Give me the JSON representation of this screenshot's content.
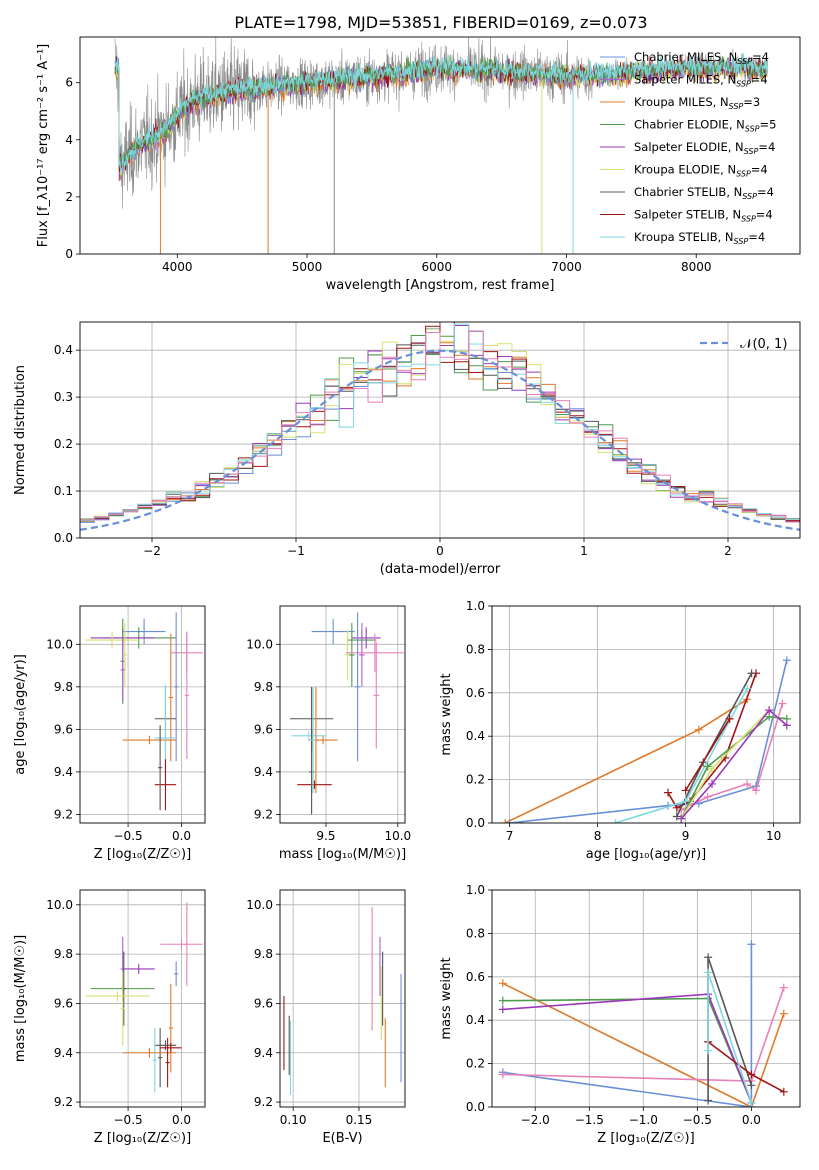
{
  "figure_title": "PLATE=1798, MJD=53851, FIBERID=0169, z=0.073",
  "colors": {
    "chabrier_miles": "#6a8fd8",
    "salpeter_miles": "#b05fd0",
    "kroupa_miles": "#e07a28",
    "chabrier_elodie": "#4f9a4f",
    "salpeter_elodie": "#9b39b8",
    "kroupa_elodie": "#d6e070",
    "chabrier_stelib": "#555555",
    "salpeter_stelib": "#a01515",
    "kroupa_stelib": "#7fd8e0",
    "pink": "#e880b8",
    "data_grey": "#8a8a8a"
  },
  "chart_data": [
    {
      "id": "spectrum",
      "type": "line",
      "xlabel": "wavelength [Angstrom, rest frame]",
      "ylabel": "Flux [f_λ10⁻¹⁷ erg cm⁻² s⁻¹ A⁻¹]",
      "xlim": [
        3250,
        8800
      ],
      "ylim": [
        0,
        7.6
      ],
      "xticks": [
        4000,
        5000,
        6000,
        7000,
        8000
      ],
      "yticks": [
        0,
        2,
        4,
        6
      ],
      "legend_position": "right",
      "legend": [
        {
          "text": "Chabrier MILES, N",
          "sub": "SSP",
          "val": "=4",
          "color": "chabrier_miles"
        },
        {
          "text": "Salpeter MILES, N",
          "sub": "SSP",
          "val": "=4",
          "color": "salpeter_miles"
        },
        {
          "text": "Kroupa MILES, N",
          "sub": "SSP",
          "val": "=3",
          "color": "kroupa_miles"
        },
        {
          "text": "Chabrier ELODIE, N",
          "sub": "SSP",
          "val": "=5",
          "color": "chabrier_elodie"
        },
        {
          "text": "Salpeter ELODIE, N",
          "sub": "SSP",
          "val": "=4",
          "color": "salpeter_elodie"
        },
        {
          "text": "Kroupa ELODIE, N",
          "sub": "SSP",
          "val": "=4",
          "color": "kroupa_elodie"
        },
        {
          "text": "Chabrier STELIB, N",
          "sub": "SSP",
          "val": "=4",
          "color": "chabrier_stelib"
        },
        {
          "text": "Salpeter STELIB, N",
          "sub": "SSP",
          "val": "=4",
          "color": "salpeter_stelib"
        },
        {
          "text": "Kroupa STELIB, N",
          "sub": "SSP",
          "val": "=4",
          "color": "kroupa_stelib"
        }
      ],
      "continuum": [
        [
          3550,
          3.0
        ],
        [
          3700,
          3.8
        ],
        [
          3900,
          4.3
        ],
        [
          4100,
          5.3
        ],
        [
          4300,
          5.6
        ],
        [
          4600,
          5.8
        ],
        [
          5000,
          6.0
        ],
        [
          5500,
          6.2
        ],
        [
          6000,
          6.5
        ],
        [
          6500,
          6.4
        ],
        [
          7000,
          6.2
        ],
        [
          7400,
          6.3
        ],
        [
          7800,
          6.5
        ],
        [
          8200,
          6.5
        ],
        [
          8500,
          6.5
        ]
      ]
    },
    {
      "id": "residuals",
      "type": "histogram",
      "xlabel": "(data-model)/error",
      "ylabel": "Normed distribution",
      "xlim": [
        -2.5,
        2.5
      ],
      "ylim": [
        0,
        0.46
      ],
      "xticks": [
        -2,
        -1,
        0,
        1,
        2
      ],
      "yticks": [
        0.0,
        0.1,
        0.2,
        0.3,
        0.4
      ],
      "grid": true,
      "legend_position": "top-right",
      "legend": "𝒩(0, 1)"
    },
    {
      "id": "age_vs_Z",
      "type": "scatter",
      "xlabel": "Z [log₁₀(Z/Z☉)]",
      "ylabel": "age  [log₁₀(age/yr)]",
      "xlim": [
        -0.95,
        0.22
      ],
      "ylim": [
        9.16,
        10.18
      ],
      "xticks": [
        -0.5,
        0.0
      ],
      "yticks": [
        9.2,
        9.4,
        9.6,
        9.8,
        10.0
      ],
      "grid": true,
      "points": [
        {
          "x": -0.35,
          "xerr": 0.2,
          "y": 10.06,
          "yerr": 0.06,
          "c": "chabrier_miles"
        },
        {
          "x": -0.4,
          "xerr": 0.35,
          "y": 10.03,
          "yerr": 0.05,
          "c": "chabrier_elodie"
        },
        {
          "x": -0.55,
          "xerr": 0.3,
          "y": 10.03,
          "yerr": 0.05,
          "c": "salpeter_elodie"
        },
        {
          "x": -0.65,
          "xerr": 0.25,
          "y": 10.02,
          "yerr": 0.04,
          "c": "kroupa_elodie"
        },
        {
          "x": -0.55,
          "xerr": 0.02,
          "y": 9.92,
          "yerr": 0.2,
          "c": "chabrier_elodie"
        },
        {
          "x": -0.53,
          "xerr": 0.02,
          "y": 9.95,
          "yerr": 0.15,
          "c": "kroupa_elodie"
        },
        {
          "x": -0.55,
          "xerr": 0.02,
          "y": 9.88,
          "yerr": 0.15,
          "c": "salpeter_miles"
        },
        {
          "x": 0.05,
          "xerr": 0.15,
          "y": 9.96,
          "yerr": 0.09,
          "c": "pink"
        },
        {
          "x": 0.05,
          "xerr": 0.02,
          "y": 9.76,
          "yerr": 0.3,
          "c": "pink"
        },
        {
          "x": -0.05,
          "xerr": 0.02,
          "y": 9.8,
          "yerr": 0.35,
          "c": "chabrier_miles"
        },
        {
          "x": -0.15,
          "xerr": 0.1,
          "y": 9.65,
          "yerr": 0.15,
          "c": "chabrier_stelib"
        },
        {
          "x": -0.3,
          "xerr": 0.25,
          "y": 9.55,
          "yerr": 0.02,
          "c": "kroupa_miles"
        },
        {
          "x": -0.1,
          "xerr": 0.02,
          "y": 9.75,
          "yerr": 0.3,
          "c": "kroupa_miles"
        },
        {
          "x": -0.15,
          "xerr": 0.1,
          "y": 9.56,
          "yerr": 0.25,
          "c": "kroupa_stelib"
        },
        {
          "x": -0.15,
          "xerr": 0.1,
          "y": 9.34,
          "yerr": 0.12,
          "c": "salpeter_stelib"
        },
        {
          "x": -0.2,
          "xerr": 0.02,
          "y": 9.42,
          "yerr": 0.2,
          "c": "chabrier_stelib"
        }
      ]
    },
    {
      "id": "age_vs_mass",
      "type": "scatter",
      "xlabel": "mass [log₁₀(M/M☉)]",
      "ylabel": "",
      "xlim": [
        9.18,
        10.05
      ],
      "ylim": [
        9.16,
        10.18
      ],
      "xticks": [
        9.5,
        10.0
      ],
      "yticks": [
        9.2,
        9.4,
        9.6,
        9.8,
        10.0
      ],
      "grid": true,
      "points": [
        {
          "x": 9.55,
          "xerr": 0.15,
          "y": 10.06,
          "yerr": 0.06,
          "c": "chabrier_miles"
        },
        {
          "x": 9.78,
          "xerr": 0.1,
          "y": 10.03,
          "yerr": 0.05,
          "c": "salpeter_elodie"
        },
        {
          "x": 9.75,
          "xerr": 0.1,
          "y": 10.02,
          "yerr": 0.05,
          "c": "chabrier_elodie"
        },
        {
          "x": 9.65,
          "xerr": 0.02,
          "y": 9.95,
          "yerr": 0.12,
          "c": "kroupa_elodie"
        },
        {
          "x": 9.68,
          "xerr": 0.02,
          "y": 9.95,
          "yerr": 0.15,
          "c": "chabrier_elodie"
        },
        {
          "x": 9.75,
          "xerr": 0.02,
          "y": 9.95,
          "yerr": 0.15,
          "c": "salpeter_miles"
        },
        {
          "x": 9.84,
          "xerr": 0.2,
          "y": 9.96,
          "yerr": 0.09,
          "c": "pink"
        },
        {
          "x": 9.85,
          "xerr": 0.02,
          "y": 9.76,
          "yerr": 0.25,
          "c": "pink"
        },
        {
          "x": 9.72,
          "xerr": 0.02,
          "y": 9.8,
          "yerr": 0.35,
          "c": "chabrier_miles"
        },
        {
          "x": 9.4,
          "xerr": 0.15,
          "y": 9.65,
          "yerr": 0.15,
          "c": "chabrier_stelib"
        },
        {
          "x": 9.48,
          "xerr": 0.1,
          "y": 9.55,
          "yerr": 0.02,
          "c": "kroupa_miles"
        },
        {
          "x": 9.38,
          "xerr": 0.12,
          "y": 9.57,
          "yerr": 0.02,
          "c": "kroupa_stelib"
        },
        {
          "x": 9.43,
          "xerr": 0.02,
          "y": 9.55,
          "yerr": 0.25,
          "c": "kroupa_miles"
        },
        {
          "x": 9.42,
          "xerr": 0.12,
          "y": 9.34,
          "yerr": 0.02,
          "c": "salpeter_stelib"
        },
        {
          "x": 9.4,
          "xerr": 0.02,
          "y": 9.4,
          "yerr": 0.2,
          "c": "chabrier_stelib"
        },
        {
          "x": 9.41,
          "xerr": 0.02,
          "y": 9.55,
          "yerr": 0.25,
          "c": "kroupa_stelib"
        }
      ]
    },
    {
      "id": "weight_vs_age",
      "type": "line",
      "xlabel": "age  [log₁₀(age/yr)]",
      "ylabel": "mass weight",
      "xlim": [
        6.8,
        10.3
      ],
      "ylim": [
        0,
        1.0
      ],
      "xticks": [
        7,
        8,
        9,
        10
      ],
      "yticks": [
        0.0,
        0.2,
        0.4,
        0.6,
        0.8,
        1.0
      ],
      "grid": true,
      "series": [
        {
          "c": "kroupa_miles",
          "x": [
            6.95,
            9.15,
            9.7
          ],
          "y": [
            0.0,
            0.43,
            0.57
          ]
        },
        {
          "c": "chabrier_miles",
          "x": [
            7.0,
            8.8,
            9.15,
            9.8,
            10.15
          ],
          "y": [
            0.0,
            0.08,
            0.09,
            0.17,
            0.75
          ]
        },
        {
          "c": "pink",
          "x": [
            8.95,
            9.25,
            9.7,
            9.8,
            10.1
          ],
          "y": [
            0.06,
            0.12,
            0.18,
            0.15,
            0.55
          ]
        },
        {
          "c": "salpeter_stelib",
          "x": [
            8.8,
            8.9,
            9.05,
            9.45,
            9.8
          ],
          "y": [
            0.14,
            0.07,
            0.1,
            0.3,
            0.69
          ]
        },
        {
          "c": "chabrier_stelib",
          "x": [
            8.9,
            9.2,
            9.75
          ],
          "y": [
            0.03,
            0.28,
            0.69
          ]
        },
        {
          "c": "kroupa_stelib",
          "x": [
            8.2,
            9.0,
            9.7
          ],
          "y": [
            0.0,
            0.1,
            0.62
          ]
        },
        {
          "c": "chabrier_elodie",
          "x": [
            8.95,
            9.25,
            9.95,
            10.15
          ],
          "y": [
            0.02,
            0.26,
            0.49,
            0.48
          ]
        },
        {
          "c": "kroupa_elodie",
          "x": [
            8.95,
            9.3,
            9.95,
            10.15
          ],
          "y": [
            0.02,
            0.25,
            0.52,
            0.45
          ]
        },
        {
          "c": "salpeter_elodie",
          "x": [
            8.95,
            9.3,
            9.95,
            10.15
          ],
          "y": [
            0.02,
            0.18,
            0.52,
            0.45
          ]
        },
        {
          "c": "salpeter_stelib",
          "x": [
            9.0,
            9.5
          ],
          "y": [
            0.15,
            0.48
          ]
        }
      ]
    },
    {
      "id": "mass_vs_Z",
      "type": "scatter",
      "xlabel": "Z [log₁₀(Z/Z☉)]",
      "ylabel": "mass [log₁₀(M/M☉)]",
      "xlim": [
        -0.95,
        0.22
      ],
      "ylim": [
        9.18,
        10.06
      ],
      "xticks": [
        -0.5,
        0.0
      ],
      "yticks": [
        9.2,
        9.4,
        9.6,
        9.8,
        10.0
      ],
      "grid": true,
      "points": [
        {
          "x": -0.05,
          "xerr": 0.02,
          "y": 9.72,
          "yerr": 0.05,
          "c": "chabrier_miles"
        },
        {
          "x": 0.0,
          "xerr": 0.2,
          "y": 9.84,
          "yerr": 0.02,
          "c": "pink"
        },
        {
          "x": 0.05,
          "xerr": 0.02,
          "y": 9.84,
          "yerr": 0.17,
          "c": "pink"
        },
        {
          "x": -0.4,
          "xerr": 0.15,
          "y": 9.74,
          "yerr": 0.02,
          "c": "salpeter_elodie"
        },
        {
          "x": -0.55,
          "xerr": 0.02,
          "y": 9.74,
          "yerr": 0.13,
          "c": "salpeter_miles"
        },
        {
          "x": -0.55,
          "xerr": 0.3,
          "y": 9.66,
          "yerr": 0.02,
          "c": "chabrier_elodie"
        },
        {
          "x": -0.54,
          "xerr": 0.02,
          "y": 9.66,
          "yerr": 0.15,
          "c": "chabrier_stelib"
        },
        {
          "x": -0.6,
          "xerr": 0.3,
          "y": 9.63,
          "yerr": 0.02,
          "c": "kroupa_elodie"
        },
        {
          "x": -0.55,
          "xerr": 0.02,
          "y": 9.58,
          "yerr": 0.15,
          "c": "kroupa_elodie"
        },
        {
          "x": -0.1,
          "xerr": 0.02,
          "y": 9.5,
          "yerr": 0.18,
          "c": "kroupa_miles"
        },
        {
          "x": -0.15,
          "xerr": 0.1,
          "y": 9.43,
          "yerr": 0.02,
          "c": "chabrier_stelib"
        },
        {
          "x": -0.1,
          "xerr": 0.1,
          "y": 9.42,
          "yerr": 0.02,
          "c": "salpeter_stelib"
        },
        {
          "x": -0.2,
          "xerr": 0.02,
          "y": 9.38,
          "yerr": 0.12,
          "c": "chabrier_stelib"
        },
        {
          "x": -0.25,
          "xerr": 0.02,
          "y": 9.37,
          "yerr": 0.13,
          "c": "kroupa_stelib"
        },
        {
          "x": -0.3,
          "xerr": 0.25,
          "y": 9.4,
          "yerr": 0.02,
          "c": "kroupa_miles"
        },
        {
          "x": -0.13,
          "xerr": 0.02,
          "y": 9.36,
          "yerr": 0.1,
          "c": "salpeter_stelib"
        }
      ]
    },
    {
      "id": "mass_vs_ebv",
      "type": "scatter",
      "xlabel": "E(B-V)",
      "ylabel": "",
      "xlim": [
        0.09,
        0.185
      ],
      "ylim": [
        9.18,
        10.06
      ],
      "xticks": [
        0.1,
        0.15
      ],
      "yticks": [
        9.2,
        9.4,
        9.6,
        9.8,
        10.0
      ],
      "grid": true,
      "points": [
        {
          "x": 0.093,
          "xerr": 0,
          "y": 9.48,
          "yerr": 0.15,
          "c": "salpeter_stelib"
        },
        {
          "x": 0.097,
          "xerr": 0,
          "y": 9.43,
          "yerr": 0.12,
          "c": "chabrier_stelib"
        },
        {
          "x": 0.098,
          "xerr": 0,
          "y": 9.38,
          "yerr": 0.15,
          "c": "kroupa_stelib"
        },
        {
          "x": 0.16,
          "xerr": 0,
          "y": 9.74,
          "yerr": 0.25,
          "c": "pink"
        },
        {
          "x": 0.166,
          "xerr": 0,
          "y": 9.75,
          "yerr": 0.12,
          "c": "salpeter_miles"
        },
        {
          "x": 0.168,
          "xerr": 0,
          "y": 9.66,
          "yerr": 0.15,
          "c": "chabrier_stelib"
        },
        {
          "x": 0.167,
          "xerr": 0,
          "y": 9.6,
          "yerr": 0.15,
          "c": "kroupa_elodie"
        },
        {
          "x": 0.17,
          "xerr": 0,
          "y": 9.4,
          "yerr": 0.14,
          "c": "kroupa_miles"
        },
        {
          "x": 0.182,
          "xerr": 0,
          "y": 9.5,
          "yerr": 0.22,
          "c": "chabrier_miles"
        }
      ]
    },
    {
      "id": "weight_vs_Z",
      "type": "line",
      "xlabel": "Z [log₁₀(Z/Z☉)]",
      "ylabel": "mass weight",
      "xlim": [
        -2.4,
        0.45
      ],
      "ylim": [
        0,
        1.0
      ],
      "xticks": [
        -2.0,
        -1.5,
        -1.0,
        -0.5,
        0.0
      ],
      "yticks": [
        0.0,
        0.2,
        0.4,
        0.6,
        0.8,
        1.0
      ],
      "grid": true,
      "series": [
        {
          "c": "kroupa_miles",
          "x": [
            -2.3,
            0.0,
            0.3
          ],
          "y": [
            0.57,
            0.0,
            0.43
          ]
        },
        {
          "c": "chabrier_miles",
          "x": [
            -2.3,
            0.0,
            0.0
          ],
          "y": [
            0.16,
            0.0,
            0.75
          ]
        },
        {
          "c": "pink",
          "x": [
            -2.3,
            0.0,
            0.3
          ],
          "y": [
            0.15,
            0.12,
            0.55
          ]
        },
        {
          "c": "chabrier_elodie",
          "x": [
            -2.3,
            -0.4,
            0.0
          ],
          "y": [
            0.49,
            0.5,
            0.02
          ]
        },
        {
          "c": "salpeter_elodie",
          "x": [
            -2.3,
            -0.4,
            0.0
          ],
          "y": [
            0.45,
            0.52,
            0.02
          ]
        },
        {
          "c": "chabrier_stelib",
          "x": [
            -0.4,
            -0.4,
            0.0
          ],
          "y": [
            0.03,
            0.69,
            0.1
          ]
        },
        {
          "c": "salpeter_stelib",
          "x": [
            -0.4,
            0.0,
            0.3
          ],
          "y": [
            0.3,
            0.15,
            0.07
          ]
        },
        {
          "c": "kroupa_stelib",
          "x": [
            -0.4,
            -0.4,
            0.0
          ],
          "y": [
            0.26,
            0.62,
            0.02
          ]
        }
      ]
    }
  ]
}
